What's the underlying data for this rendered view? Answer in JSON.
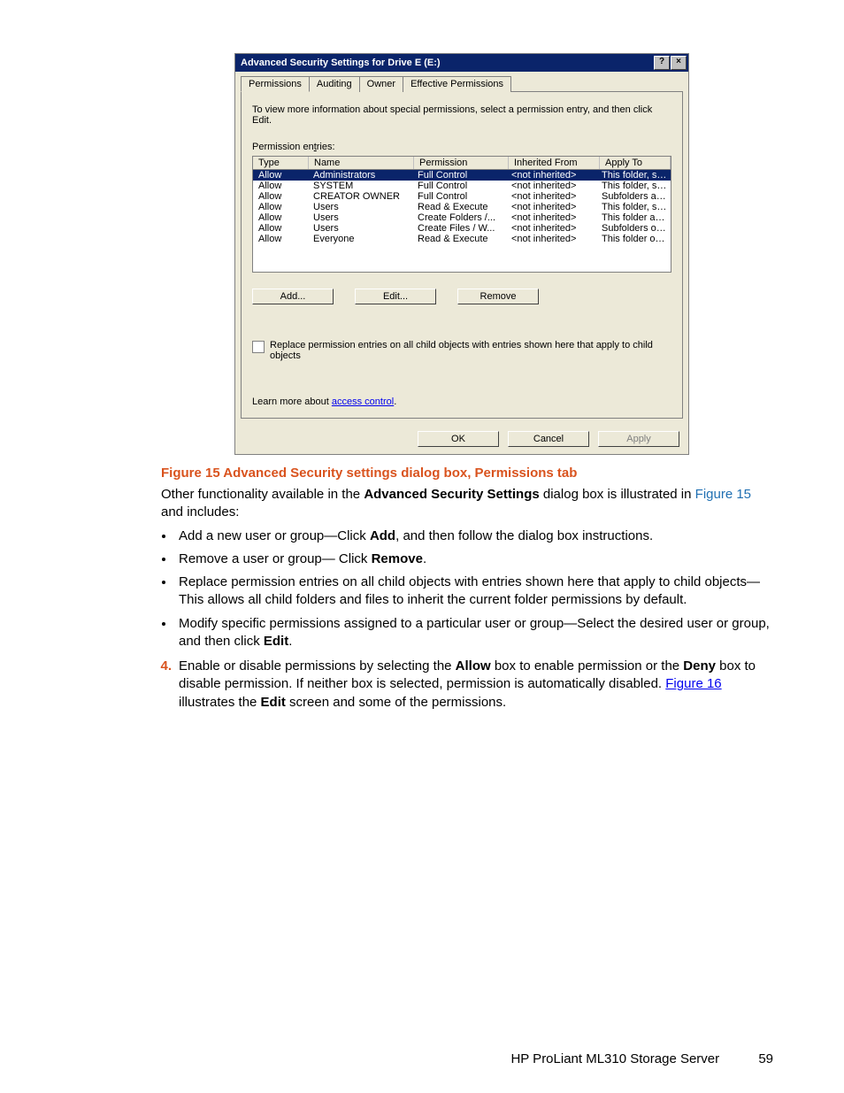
{
  "colors": {
    "caption": "#d9531e",
    "link": "#1f6fb2",
    "titlebar_bg": "#0a246a",
    "dialog_bg": "#ece9d8",
    "selection_bg": "#0a246a"
  },
  "dialog": {
    "title": "Advanced Security Settings for Drive E (E:)",
    "help_glyph": "?",
    "close_glyph": "×",
    "tabs": {
      "permissions": "Permissions",
      "auditing": "Auditing",
      "owner": "Owner",
      "effective": "Effective Permissions"
    },
    "instruction": "To view more information about special permissions, select a permission entry, and then click Edit.",
    "entries_label_pre": "Permission en",
    "entries_label_u": "t",
    "entries_label_post": "ries:",
    "columns": {
      "type": "Type",
      "name": "Name",
      "permission": "Permission",
      "inherited": "Inherited From",
      "applyto": "Apply To"
    },
    "rows": [
      {
        "type": "Allow",
        "name": "Administrators",
        "perm": "Full Control",
        "inh": "<not inherited>",
        "apply": "This folder, subfolders...",
        "selected": true
      },
      {
        "type": "Allow",
        "name": "SYSTEM",
        "perm": "Full Control",
        "inh": "<not inherited>",
        "apply": "This folder, subfolders..."
      },
      {
        "type": "Allow",
        "name": "CREATOR OWNER",
        "perm": "Full Control",
        "inh": "<not inherited>",
        "apply": "Subfolders and files only"
      },
      {
        "type": "Allow",
        "name": "Users",
        "perm": "Read & Execute",
        "inh": "<not inherited>",
        "apply": "This folder, subfolders..."
      },
      {
        "type": "Allow",
        "name": "Users",
        "perm": "Create Folders /...",
        "inh": "<not inherited>",
        "apply": "This folder and subfol..."
      },
      {
        "type": "Allow",
        "name": "Users",
        "perm": "Create Files / W...",
        "inh": "<not inherited>",
        "apply": "Subfolders only"
      },
      {
        "type": "Allow",
        "name": "Everyone",
        "perm": "Read & Execute",
        "inh": "<not inherited>",
        "apply": "This folder only"
      }
    ],
    "buttons": {
      "add": "Add...",
      "edit": "Edit...",
      "remove": "Remove"
    },
    "replace_text": "Replace permission entries on all child objects with entries shown here that apply to child objects",
    "learn_prefix": "Learn more about ",
    "learn_link": "access control",
    "learn_suffix": ".",
    "footer": {
      "ok": "OK",
      "cancel": "Cancel",
      "apply": "Apply"
    }
  },
  "doc": {
    "caption": "Figure 15 Advanced Security settings dialog box, Permissions tab",
    "para1_a": "Other functionality available in the ",
    "para1_b": "Advanced Security Settings",
    "para1_c": " dialog box is illustrated in ",
    "para1_link": "Figure 15",
    "para1_d": " and includes:",
    "bul1_a": "Add a new user or group—Click ",
    "bul1_b": "Add",
    "bul1_c": ", and then follow the dialog box instructions.",
    "bul2_a": "Remove a user or group— Click ",
    "bul2_b": "Remove",
    "bul2_c": ".",
    "bul3": "Replace permission entries on all child objects with entries shown here that apply to child objects—This allows all child folders and files to inherit the current folder permissions by default.",
    "bul4_a": "Modify specific permissions assigned to a particular user or group—Select the desired user or group, and then click ",
    "bul4_b": "Edit",
    "bul4_c": ".",
    "step_num": "4.",
    "step_a": "Enable or disable permissions by selecting the ",
    "step_b": "Allow",
    "step_c": " box to enable permission or the ",
    "step_d": "Deny",
    "step_e": " box to disable permission. If neither box is selected, permission is automatically disabled. ",
    "step_link": "Figure 16",
    "step_f": " illustrates the ",
    "step_g": "Edit",
    "step_h": " screen and some of the permissions.",
    "footer_text": "HP ProLiant ML310 Storage Server",
    "page_num": "59"
  }
}
